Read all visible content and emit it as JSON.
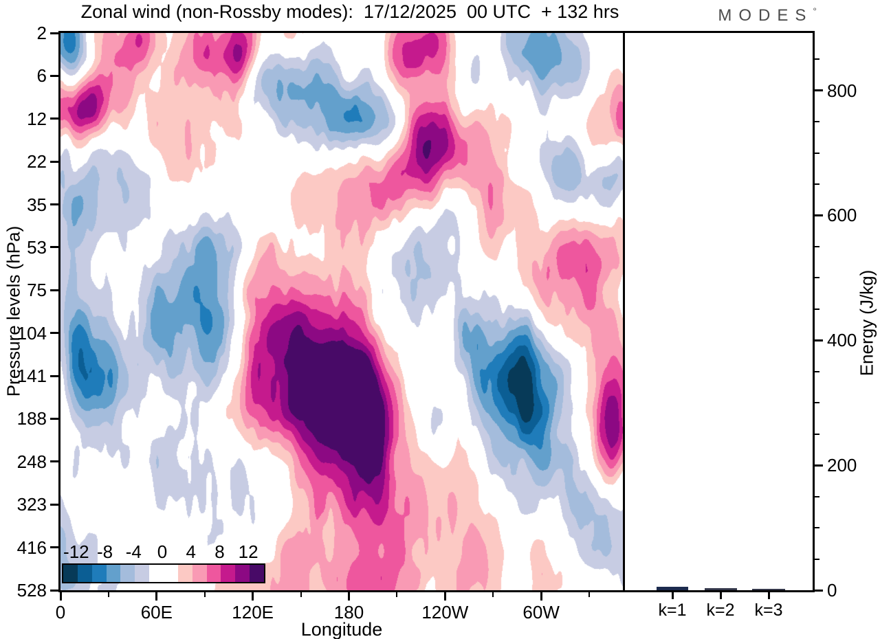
{
  "header": {
    "title": "Zonal wind (non-Rossby modes):  17/12/2025  00 UTC  + 132 hrs",
    "logo_text": "MODES",
    "logo_mark": "°"
  },
  "axes": {
    "pressure": {
      "label": "Pressure levels (hPa)",
      "ticks": [
        "2",
        "6",
        "12",
        "22",
        "35",
        "53",
        "75",
        "104",
        "141",
        "188",
        "248",
        "323",
        "416",
        "528"
      ]
    },
    "longitude": {
      "label": "Longitude",
      "major": [
        {
          "label": "0",
          "deg": 0
        },
        {
          "label": "60E",
          "deg": 60
        },
        {
          "label": "120E",
          "deg": 120
        },
        {
          "label": "180",
          "deg": 180
        },
        {
          "label": "120W",
          "deg": 240
        },
        {
          "label": "60W",
          "deg": 300
        }
      ],
      "minor_deg": [
        30,
        90,
        150,
        210,
        270,
        330
      ]
    },
    "energy": {
      "label": "Energy (J/kg)",
      "major": [
        {
          "label": "0",
          "value": 0
        },
        {
          "label": "200",
          "value": 200
        },
        {
          "label": "400",
          "value": 400
        },
        {
          "label": "600",
          "value": 600
        },
        {
          "label": "800",
          "value": 800
        }
      ],
      "minor_step": 50,
      "axis_max": 892
    }
  },
  "colorbar": {
    "labels": [
      "-12",
      "-8",
      "-4",
      "0",
      "4",
      "8",
      "12"
    ],
    "label_boundaries": [
      1,
      3,
      5,
      7,
      9,
      11,
      13
    ]
  },
  "energy_panel": {
    "bars": [
      {
        "label": "k=1",
        "value": 6,
        "color": "#1c2b4e"
      },
      {
        "label": "k=2",
        "value": 3,
        "color": "#34374a"
      },
      {
        "label": "k=3",
        "value": 2,
        "color": "#34374a"
      }
    ]
  },
  "chart_data": {
    "type": "contour",
    "title": "Zonal wind (non-Rossby modes):  17/12/2025  00 UTC  + 132 hrs",
    "xlabel": "Longitude",
    "ylabel_left": "Pressure levels (hPa)",
    "ylabel_right": "Energy (J/kg)",
    "x_range_deg": [
      0,
      351
    ],
    "x_tick_labels": [
      "0",
      "60E",
      "120E",
      "180",
      "120W",
      "60W"
    ],
    "pressure_levels_hpa": [
      2,
      6,
      12,
      22,
      35,
      53,
      75,
      104,
      141,
      188,
      248,
      323,
      416,
      528
    ],
    "contour_range": [
      -14,
      14
    ],
    "contour_step": 2,
    "palette": [
      "#073a58",
      "#0b5e94",
      "#1f7cba",
      "#63a0cc",
      "#a4bcdc",
      "#c7cce3",
      "#ffffff",
      "#ffffff",
      "#fcc9c4",
      "#f99ab4",
      "#ee579e",
      "#c51a8d",
      "#8c0983",
      "#480a67"
    ],
    "energy_bars": {
      "categories": [
        "k=1",
        "k=2",
        "k=3"
      ],
      "values": [
        6,
        3,
        2
      ],
      "ylim": [
        0,
        892
      ]
    },
    "field_model": {
      "comment": "Gaussian bumps [lon_deg, level_row(0=2hPa..13=528hPa), sigma_lon, sigma_row, amplitude] approximating the plotted anomaly field",
      "bumps": [
        [
          6,
          0.35,
          9,
          0.7,
          -8.5
        ],
        [
          33,
          0.9,
          14,
          0.9,
          5.5
        ],
        [
          50,
          0.15,
          7,
          0.6,
          6.5
        ],
        [
          92,
          0.5,
          16,
          0.8,
          7
        ],
        [
          113,
          0.3,
          7,
          0.6,
          8.5
        ],
        [
          143,
          0.1,
          10,
          0.6,
          5
        ],
        [
          18,
          1.65,
          8,
          0.55,
          9.5
        ],
        [
          6,
          2.1,
          7,
          0.6,
          6
        ],
        [
          150,
          1.4,
          16,
          0.8,
          -6.5
        ],
        [
          126,
          0.9,
          10,
          0.6,
          -4.5
        ],
        [
          172,
          2.1,
          10,
          0.6,
          -5
        ],
        [
          232,
          0.25,
          11,
          0.6,
          9.5
        ],
        [
          214,
          0.6,
          9,
          0.6,
          6
        ],
        [
          295,
          0.3,
          14,
          0.7,
          -7.5
        ],
        [
          322,
          0.8,
          12,
          0.8,
          -4.5
        ],
        [
          354,
          2.0,
          8,
          0.8,
          6
        ],
        [
          254,
          1.2,
          10,
          0.7,
          -4
        ],
        [
          3,
          2.55,
          6,
          0.5,
          -5.5
        ],
        [
          62,
          2.6,
          18,
          0.9,
          4.5
        ],
        [
          205,
          2.4,
          13,
          0.7,
          -6.5
        ],
        [
          187,
          1.9,
          10,
          0.6,
          -4.5
        ],
        [
          226,
          2.75,
          14,
          0.8,
          9.5
        ],
        [
          248,
          2.5,
          16,
          0.9,
          6.5
        ],
        [
          203,
          3.3,
          13,
          0.8,
          7
        ],
        [
          168,
          3.8,
          16,
          0.9,
          4.5
        ],
        [
          268,
          3.9,
          14,
          0.9,
          5
        ],
        [
          336,
          2.4,
          10,
          0.8,
          5.5
        ],
        [
          318,
          3.4,
          12,
          0.8,
          -5
        ],
        [
          341,
          3.3,
          10,
          0.8,
          -7
        ],
        [
          28,
          3.1,
          16,
          1.1,
          -4.2
        ],
        [
          55,
          3.6,
          12,
          0.8,
          -3.5
        ],
        [
          250,
          4.1,
          12,
          0.9,
          -3.6
        ],
        [
          8,
          4.6,
          10,
          0.9,
          -5.5
        ],
        [
          2,
          6.4,
          8,
          0.9,
          -4.5
        ],
        [
          78,
          6.1,
          14,
          1.1,
          -5.5
        ],
        [
          98,
          5.2,
          11,
          0.8,
          -4.5
        ],
        [
          60,
          7.0,
          11,
          0.9,
          -4
        ],
        [
          305,
          5.8,
          12,
          1.0,
          5
        ],
        [
          325,
          5.2,
          12,
          1.0,
          6.5
        ],
        [
          352,
          5.0,
          9,
          0.9,
          4.5
        ],
        [
          150,
          6.6,
          16,
          0.9,
          4.5
        ],
        [
          128,
          5.9,
          10,
          0.8,
          3.5
        ],
        [
          232,
          5.3,
          13,
          1.0,
          -3.8
        ],
        [
          207,
          6.3,
          10,
          0.8,
          -3.5
        ],
        [
          15,
          7.9,
          9,
          1.0,
          -9
        ],
        [
          34,
          8.3,
          10,
          1.0,
          -5
        ],
        [
          138,
          7.9,
          15,
          1.2,
          7.5
        ],
        [
          158,
          8.3,
          14,
          1.2,
          8.5
        ],
        [
          180,
          8.1,
          12,
          1.3,
          9.5
        ],
        [
          196,
          8.6,
          12,
          1.2,
          7.5
        ],
        [
          118,
          8.6,
          12,
          1.0,
          5.5
        ],
        [
          172,
          9.8,
          16,
          1.2,
          5
        ],
        [
          192,
          9.7,
          10,
          1.1,
          5.5
        ],
        [
          286,
          7.9,
          12,
          1.1,
          -9.5
        ],
        [
          300,
          8.9,
          13,
          1.2,
          -6.5
        ],
        [
          268,
          8.6,
          9,
          1.0,
          -5
        ],
        [
          256,
          7.2,
          8,
          0.9,
          -4.5
        ],
        [
          345,
          9.2,
          7,
          0.9,
          9.5
        ],
        [
          342,
          9.1,
          12,
          1.3,
          4
        ],
        [
          96,
          7.2,
          12,
          0.9,
          -4.5
        ],
        [
          338,
          7.0,
          10,
          0.9,
          3.8
        ],
        [
          233,
          9.3,
          6,
          0.7,
          -4.5
        ],
        [
          112,
          10.9,
          22,
          1.3,
          -3.6
        ],
        [
          70,
          10.2,
          12,
          1.0,
          -3.2
        ],
        [
          210,
          11.6,
          18,
          1.5,
          4.6
        ],
        [
          243,
          10.9,
          13,
          1.2,
          4.2
        ],
        [
          322,
          10.9,
          11,
          1.1,
          -3.6
        ],
        [
          352,
          10.4,
          9,
          1.0,
          -4.2
        ],
        [
          185,
          12.6,
          18,
          1.1,
          4.4
        ],
        [
          262,
          12.8,
          13,
          0.9,
          3.6
        ],
        [
          148,
          11.9,
          10,
          1.0,
          3.4
        ],
        [
          8,
          12.7,
          10,
          0.9,
          -3.6
        ],
        [
          120,
          12.9,
          25,
          0.9,
          3.2
        ],
        [
          308,
          12.7,
          12,
          0.9,
          3.4
        ],
        [
          340,
          11.8,
          8,
          0.8,
          -3.4
        ]
      ],
      "noise": {
        "seed": 7,
        "octaves": [
          {
            "cell_deg": 10,
            "cell_rows": 1.0,
            "amp": 1.7
          },
          {
            "cell_deg": 4,
            "cell_rows": 0.55,
            "amp": 0.85
          }
        ]
      }
    }
  }
}
